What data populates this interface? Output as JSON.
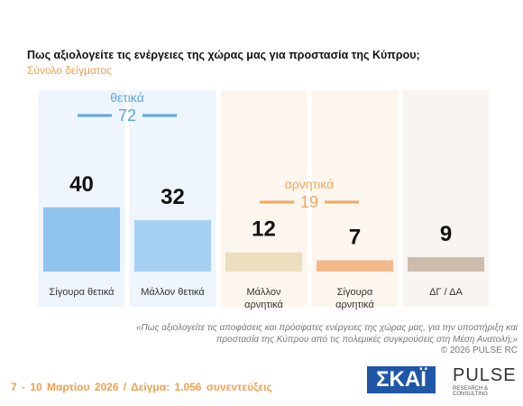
{
  "chart_data": {
    "type": "bar",
    "title": "Πως αξιολογείτε τις ενέργειες της χώρας μας για προστασία της Κύπρου;",
    "subtitle": "Σύνολο δείγματος",
    "categories": [
      "Σίγουρα θετικά",
      "Μάλλον θετικά",
      "Μάλλον αρνητικά",
      "Σίγουρα αρνητικά",
      "ΔΓ / ΔΑ"
    ],
    "values": [
      40,
      32,
      12,
      7,
      9
    ],
    "colors": [
      "#8fc4ee",
      "#a6d0f2",
      "#ecdfbd",
      "#f3b98a",
      "#cdbcab"
    ],
    "groups": [
      {
        "label": "θετικά",
        "value": 72,
        "color": "#5aa6e2",
        "from": 0,
        "to": 1
      },
      {
        "label": "αρνητικά",
        "value": 19,
        "color": "#f0a860",
        "from": 2,
        "to": 3
      }
    ],
    "note": "«Πως αξιολογείτε τις αποφάσεις και πρόσφατες ενέργειες της χώρας μας, για την υποστήριξη και προστασία της Κύπρου από τις πολεμικές συγκρούσεις στη Μέση Ανατολή;»",
    "copyright": "© 2026 PULSE RC",
    "footer": "7 - 10 Μαρτίου 2026 / Δείγμα: 1.056 συνεντεύξεις",
    "logos": [
      "ΣΚΑΪ",
      "PULSE",
      "RESEARCH & CONSULTING"
    ]
  }
}
